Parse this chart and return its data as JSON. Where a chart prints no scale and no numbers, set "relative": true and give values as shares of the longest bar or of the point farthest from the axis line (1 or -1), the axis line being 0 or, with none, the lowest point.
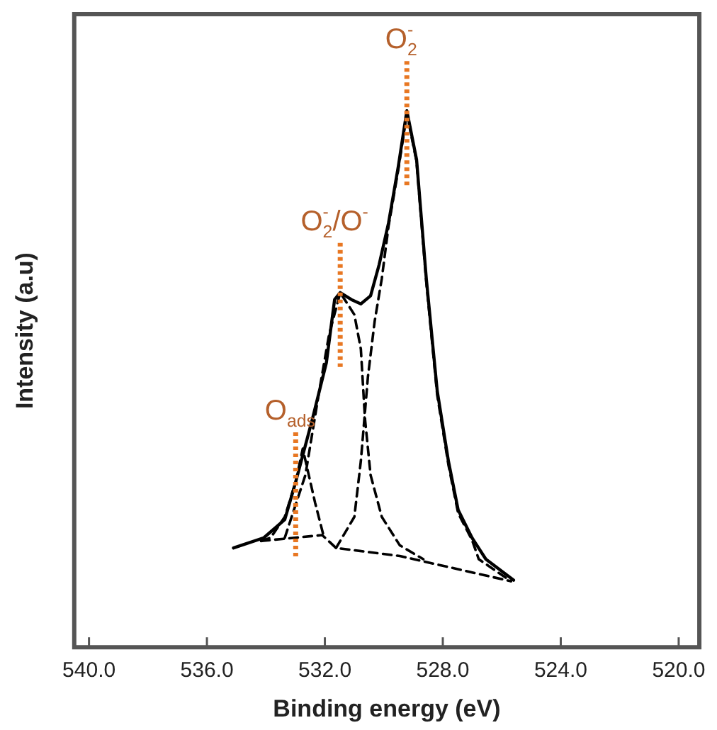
{
  "chart_data": {
    "type": "line",
    "relative": true,
    "xlabel": "Binding energy (eV)",
    "ylabel": "Intensity (a.u)",
    "xlim": [
      540.5,
      519.3
    ],
    "xticks": [
      {
        "value": 540,
        "label": "540.0"
      },
      {
        "value": 536,
        "label": "536.0"
      },
      {
        "value": 532,
        "label": "532.0"
      },
      {
        "value": 528,
        "label": "528.0"
      },
      {
        "value": 524,
        "label": "524.0"
      },
      {
        "value": 520,
        "label": "520.0"
      }
    ],
    "tick_labels": "x",
    "grid": false,
    "legend": false,
    "marker": "none",
    "series": [
      {
        "color": "#000000",
        "line_style": "solid",
        "x": [
          535.1,
          534.07,
          533.36,
          532.99,
          532.42,
          531.95,
          531.67,
          531.48,
          531.1,
          530.78,
          530.45,
          530.16,
          529.84,
          529.51,
          529.22,
          528.89,
          528.56,
          528.19,
          527.81,
          527.48,
          527.01,
          526.54,
          525.6
        ],
        "values": [
          0.185,
          0.204,
          0.238,
          0.308,
          0.426,
          0.53,
          0.648,
          0.661,
          0.648,
          0.64,
          0.655,
          0.713,
          0.791,
          0.896,
          1.0,
          0.909,
          0.687,
          0.478,
          0.347,
          0.256,
          0.204,
          0.164,
          0.125
        ]
      },
      {
        "color": "#000000",
        "line_style": "dashed",
        "x": [
          534.16,
          532.09,
          531.62,
          529.46,
          525.69
        ],
        "values": [
          0.198,
          0.209,
          0.185,
          0.17,
          0.123
        ]
      },
      {
        "color": "#000000",
        "line_style": "dashed",
        "x": [
          534.16,
          533.84,
          533.36,
          532.99,
          532.75,
          532.33,
          532.05
        ],
        "values": [
          0.198,
          0.204,
          0.243,
          0.308,
          0.37,
          0.269,
          0.209
        ]
      },
      {
        "color": "#000000",
        "line_style": "dashed",
        "x": [
          533.36,
          532.66,
          532.19,
          531.86,
          531.48,
          531.0,
          530.78,
          530.64,
          530.45,
          530.07,
          529.46,
          528.66
        ],
        "values": [
          0.204,
          0.321,
          0.478,
          0.582,
          0.661,
          0.62,
          0.556,
          0.426,
          0.321,
          0.243,
          0.19,
          0.164
        ]
      },
      {
        "color": "#000000",
        "line_style": "dashed",
        "x": [
          531.62,
          531.0,
          530.78,
          530.54,
          530.31,
          530.07,
          529.84,
          529.51,
          529.22,
          528.89,
          528.56,
          528.19,
          527.81,
          527.48,
          527.01,
          526.78,
          525.69
        ],
        "values": [
          0.185,
          0.243,
          0.347,
          0.504,
          0.608,
          0.687,
          0.785,
          0.89,
          0.995,
          0.905,
          0.68,
          0.47,
          0.34,
          0.25,
          0.2,
          0.164,
          0.123
        ]
      }
    ],
    "annotations": [
      {
        "text": "O$_{ads}$",
        "x": 532.99,
        "y": 0.308
      },
      {
        "text": "O$_{2}$$^{-}$/O$^{-}$",
        "x": 531.48,
        "y": 0.661
      },
      {
        "text": "O$_{2}$$^{-}$",
        "x": 529.22,
        "y": 1.0
      }
    ]
  }
}
